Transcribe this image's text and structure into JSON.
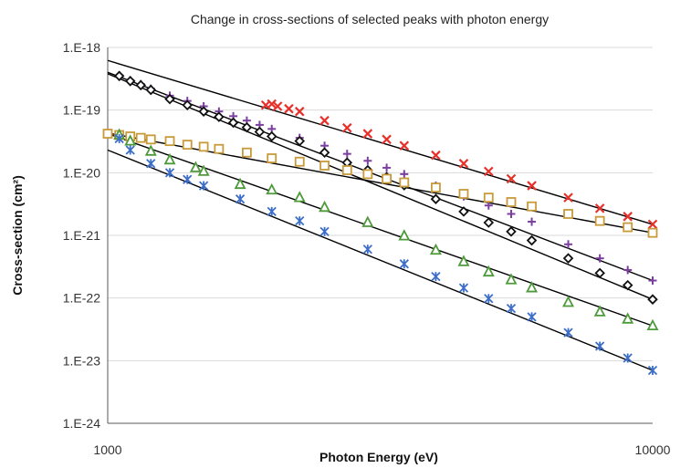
{
  "chart_data": {
    "type": "scatter",
    "title": "Change in cross-sections of selected peaks with photon energy",
    "xlabel": "Photon Energy (eV)",
    "ylabel": "Cross-section (cm²)",
    "x_scale": "log",
    "y_scale": "log",
    "xlim": [
      1000,
      10000
    ],
    "ylim": [
      1e-24,
      1e-18
    ],
    "x_ticks": [
      {
        "value": 1000,
        "label": "1000"
      },
      {
        "value": 10000,
        "label": "10000"
      }
    ],
    "y_ticks": [
      {
        "value": 1e-18,
        "label": "1.E-18"
      },
      {
        "value": 1e-19,
        "label": "1.E-19"
      },
      {
        "value": 1e-20,
        "label": "1.E-20"
      },
      {
        "value": 1e-21,
        "label": "1.E-21"
      },
      {
        "value": 1e-22,
        "label": "1.E-22"
      },
      {
        "value": 1e-23,
        "label": "1.E-23"
      },
      {
        "value": 1e-24,
        "label": "1.E-24"
      }
    ],
    "grid": {
      "horizontal": true,
      "vertical": false
    },
    "series": [
      {
        "marker": "x",
        "color": "#e8302a",
        "x": [
          1950,
          2000,
          2050,
          2150,
          2250,
          2500,
          2750,
          3000,
          3250,
          3500,
          4000,
          4500,
          5000,
          5500,
          6000,
          7000,
          8000,
          9000,
          10000
        ],
        "y": [
          1.2e-19,
          1.25e-19,
          1.15e-19,
          1.05e-19,
          9.5e-20,
          6.8e-20,
          5.2e-20,
          4.2e-20,
          3.4e-20,
          2.7e-20,
          1.9e-20,
          1.4e-20,
          1.05e-20,
          8e-21,
          6.2e-21,
          4e-21,
          2.7e-21,
          2e-21,
          1.5e-21
        ],
        "fit": {
          "x": [
            1000,
            10000
          ],
          "y": [
            6.2e-19,
            1.5e-21
          ]
        }
      },
      {
        "marker": "plus",
        "color": "#7b3fa0",
        "x": [
          1050,
          1100,
          1150,
          1200,
          1300,
          1400,
          1500,
          1600,
          1700,
          1800,
          1900,
          2000,
          2250,
          2500,
          2750,
          3000,
          3250,
          3500,
          4000,
          4500,
          5000,
          5500,
          6000,
          7000,
          8000,
          9000,
          10000
        ],
        "y": [
          3.6e-19,
          3e-19,
          2.6e-19,
          2.2e-19,
          1.7e-19,
          1.4e-19,
          1.15e-19,
          9.5e-20,
          8e-20,
          6.8e-20,
          5.8e-20,
          5e-20,
          3.6e-20,
          2.7e-20,
          2e-20,
          1.55e-20,
          1.2e-20,
          9.5e-21,
          6.2e-21,
          4.2e-21,
          3e-21,
          2.2e-21,
          1.65e-21,
          7.2e-22,
          4.3e-22,
          2.8e-22,
          1.9e-22
        ],
        "fit": {
          "x": [
            1000,
            10000
          ],
          "y": [
            4e-19,
            1.9e-22
          ]
        }
      },
      {
        "marker": "diamond",
        "color": "#111111",
        "x": [
          1050,
          1100,
          1150,
          1200,
          1300,
          1400,
          1500,
          1600,
          1700,
          1800,
          1900,
          2000,
          2250,
          2500,
          2750,
          3000,
          3250,
          3500,
          4000,
          4500,
          5000,
          5500,
          6000,
          7000,
          8000,
          9000,
          10000
        ],
        "y": [
          3.5e-19,
          2.9e-19,
          2.5e-19,
          2.1e-19,
          1.5e-19,
          1.2e-19,
          9.5e-20,
          7.8e-20,
          6.3e-20,
          5.3e-20,
          4.5e-20,
          3.8e-20,
          3.2e-20,
          2.1e-20,
          1.45e-20,
          1.1e-20,
          8.5e-21,
          6.3e-21,
          3.8e-21,
          2.4e-21,
          1.6e-21,
          1.15e-21,
          8.3e-22,
          4.3e-22,
          2.5e-22,
          1.6e-22,
          9.5e-23
        ],
        "fit": {
          "x": [
            1000,
            10000
          ],
          "y": [
            3.8e-19,
            9.5e-23
          ]
        }
      },
      {
        "marker": "square",
        "color": "#c89a3a",
        "x": [
          1000,
          1050,
          1100,
          1150,
          1200,
          1300,
          1400,
          1500,
          1600,
          1800,
          2000,
          2250,
          2500,
          2750,
          3000,
          3250,
          3500,
          4000,
          4500,
          5000,
          5500,
          6000,
          7000,
          8000,
          9000,
          10000
        ],
        "y": [
          4.2e-20,
          4e-20,
          3.8e-20,
          3.6e-20,
          3.4e-20,
          3.2e-20,
          2.8e-20,
          2.6e-20,
          2.4e-20,
          2.1e-20,
          1.7e-20,
          1.5e-20,
          1.3e-20,
          1.1e-20,
          9.5e-21,
          8e-21,
          7e-21,
          5.8e-21,
          4.6e-21,
          4e-21,
          3.4e-21,
          2.9e-21,
          2.2e-21,
          1.7e-21,
          1.35e-21,
          1.1e-21
        ],
        "fit": {
          "x": [
            1000,
            10000
          ],
          "y": [
            4.3e-20,
            1.1e-21
          ]
        }
      },
      {
        "marker": "triangle",
        "color": "#4e9a3b",
        "x": [
          1050,
          1100,
          1200,
          1300,
          1450,
          1500,
          1750,
          2000,
          2250,
          2500,
          3000,
          3500,
          4000,
          4500,
          5000,
          5500,
          6000,
          7000,
          8000,
          9000,
          10000
        ],
        "y": [
          4e-20,
          3.2e-20,
          2.2e-20,
          1.6e-20,
          1.2e-20,
          1.05e-20,
          6.5e-21,
          5.3e-21,
          4e-21,
          2.8e-21,
          1.6e-21,
          9.8e-22,
          5.8e-22,
          3.8e-22,
          2.6e-22,
          1.95e-22,
          1.45e-22,
          8.5e-23,
          6e-23,
          4.6e-23,
          3.6e-23
        ],
        "fit": {
          "x": [
            1000,
            10000
          ],
          "y": [
            4.2e-20,
            3.6e-23
          ]
        }
      },
      {
        "marker": "asterisk",
        "color": "#3c6ec9",
        "x": [
          1050,
          1100,
          1200,
          1300,
          1400,
          1500,
          1750,
          2000,
          2250,
          2500,
          3000,
          3500,
          4000,
          4500,
          5000,
          5500,
          6000,
          7000,
          8000,
          9000,
          10000
        ],
        "y": [
          3.5e-20,
          2.3e-20,
          1.4e-20,
          1e-20,
          7.8e-21,
          6.2e-21,
          3.8e-21,
          2.4e-21,
          1.7e-21,
          1.15e-21,
          6e-22,
          3.5e-22,
          2.2e-22,
          1.45e-22,
          9.8e-23,
          6.8e-23,
          5e-23,
          2.8e-23,
          1.7e-23,
          1.1e-23,
          7e-24
        ],
        "fit": {
          "x": [
            1000,
            10000
          ],
          "y": [
            2.3e-20,
            7e-24
          ]
        }
      }
    ]
  }
}
